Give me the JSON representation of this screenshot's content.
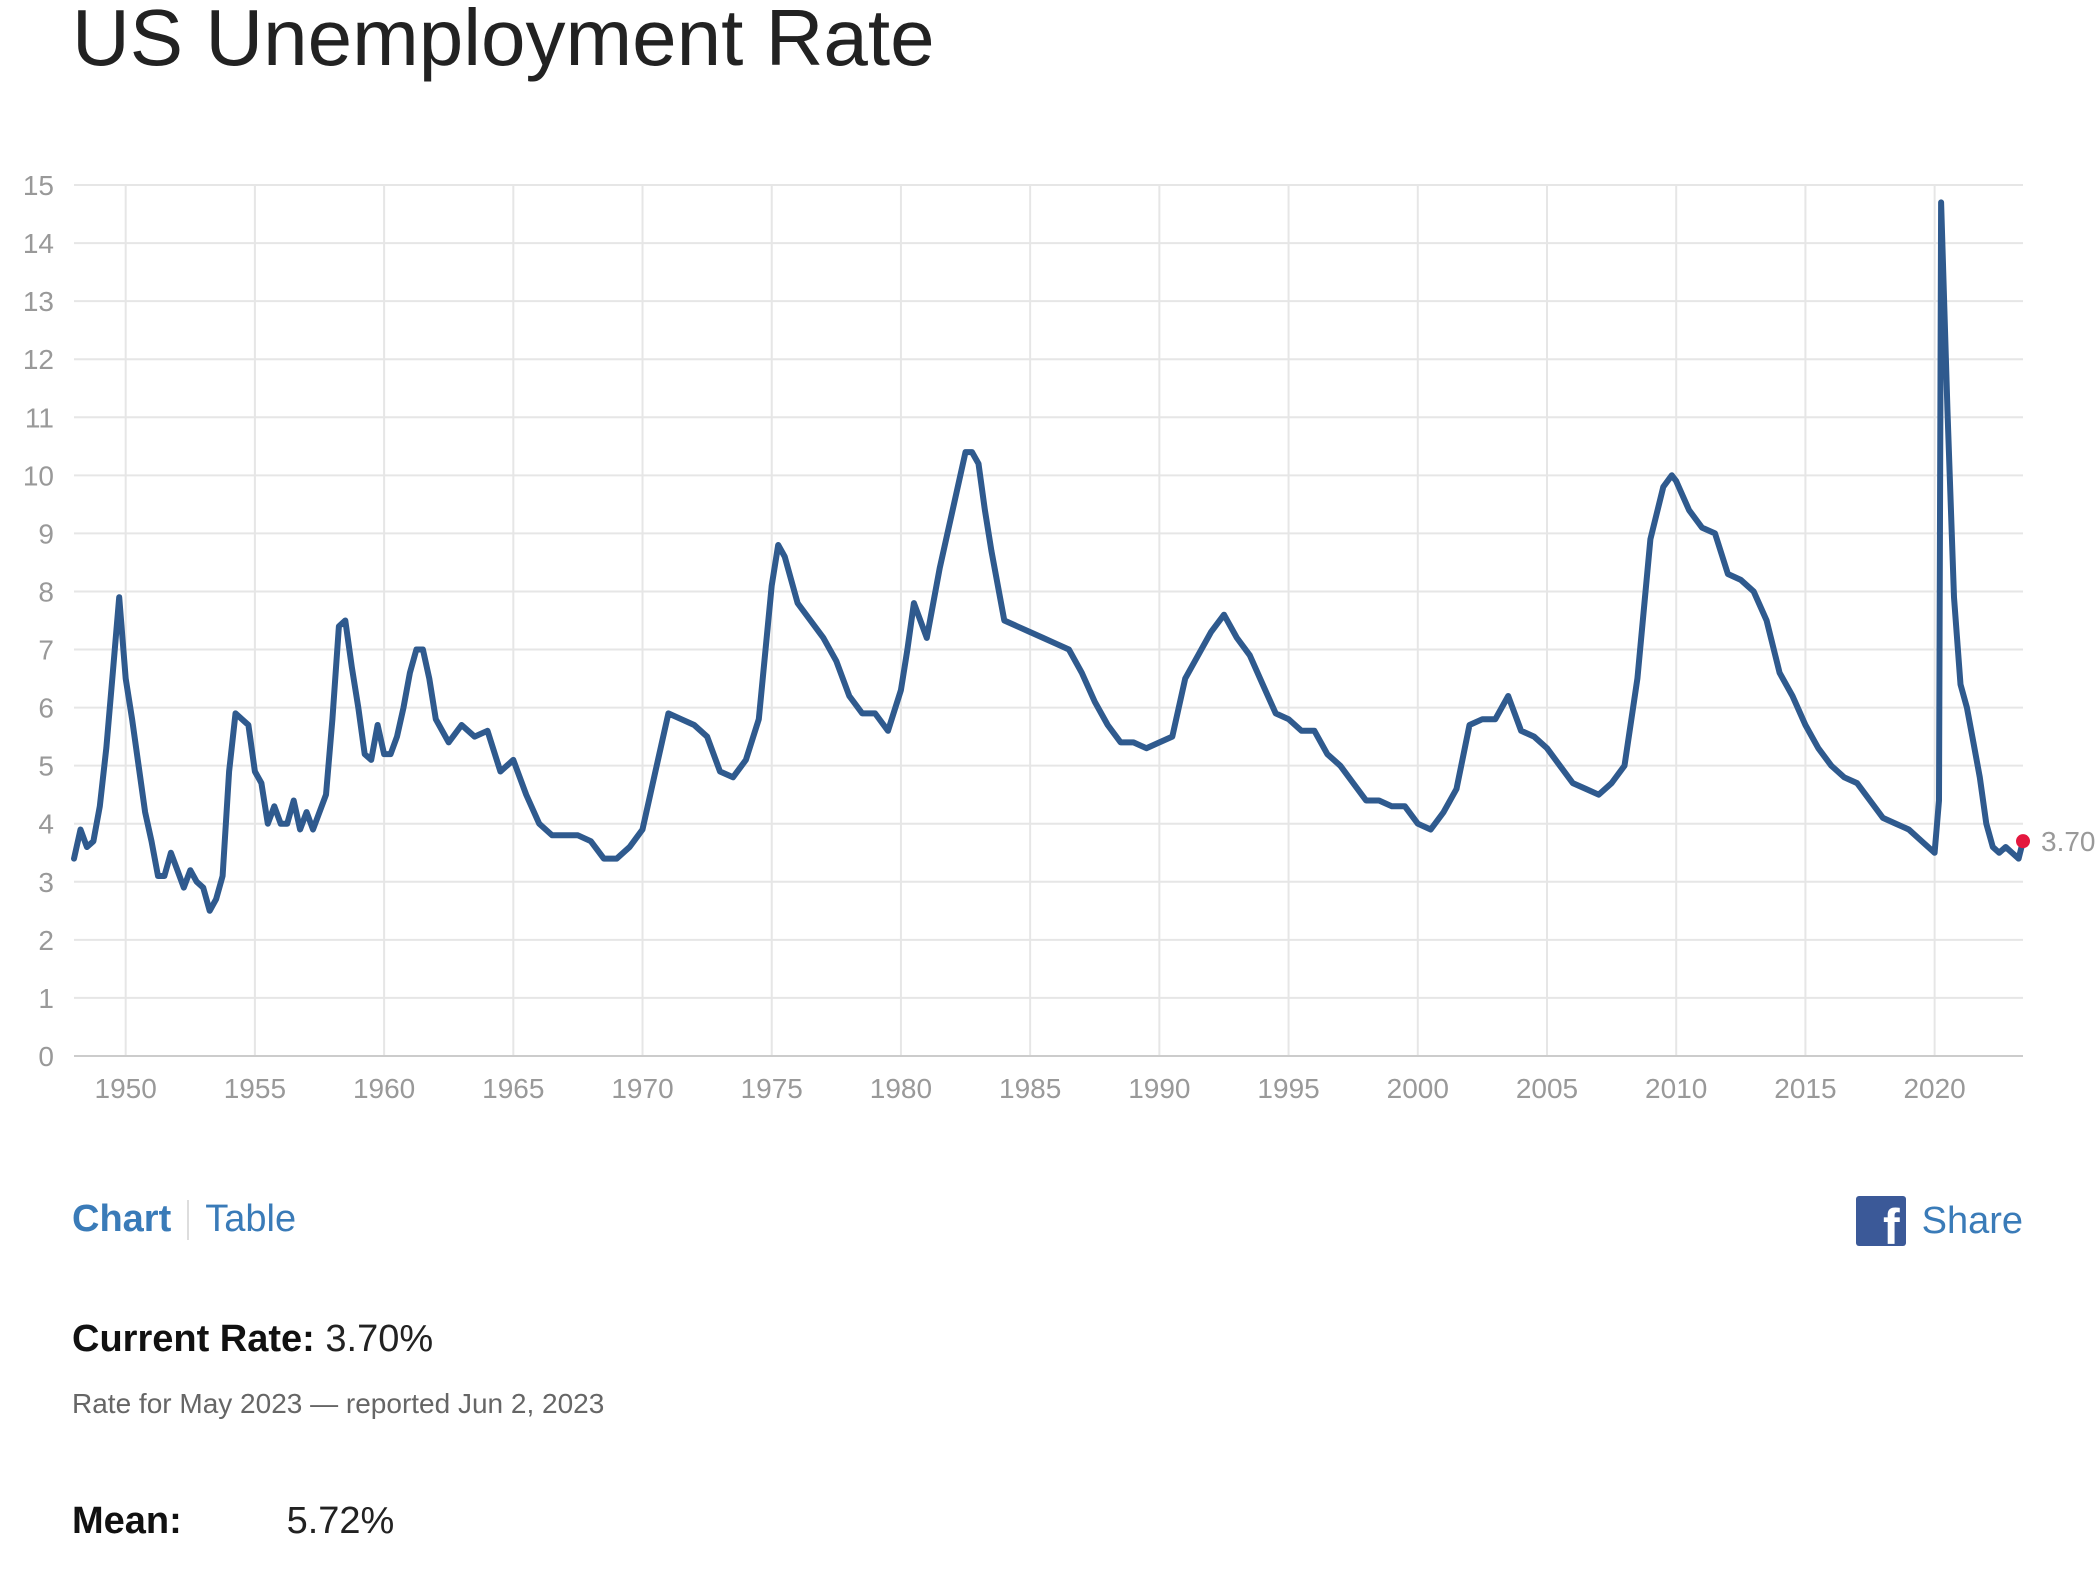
{
  "page": {
    "title": "US Unemployment Rate"
  },
  "tabs": {
    "chart_label": "Chart",
    "table_label": "Table",
    "share_label": "Share",
    "share_icon": "facebook-icon"
  },
  "stats": {
    "current_label": "Current Rate:",
    "current_value": "3.70%",
    "current_note": "Rate for May 2023 — reported Jun 2, 2023",
    "mean_label": "Mean:",
    "mean_value": "5.72%"
  },
  "colors": {
    "line": "#2f5a8e",
    "marker": "#e4173e",
    "grid": "#e6e6e6",
    "tick_text": "#999999",
    "link": "#3a7bb8"
  },
  "chart_data": {
    "type": "line",
    "title": "US Unemployment Rate",
    "xlabel": "",
    "ylabel": "",
    "ylim": [
      0,
      15
    ],
    "xlim": [
      1948,
      2023.42
    ],
    "grid": true,
    "y_ticks": [
      0,
      1,
      2,
      3,
      4,
      5,
      6,
      7,
      8,
      9,
      10,
      11,
      12,
      13,
      14,
      15
    ],
    "x_ticks": [
      1950,
      1955,
      1960,
      1965,
      1970,
      1975,
      1980,
      1985,
      1990,
      1995,
      2000,
      2005,
      2010,
      2015,
      2020
    ],
    "end_label": "3.70",
    "series": [
      {
        "x": [
          1948.0,
          1948.25,
          1948.5,
          1948.75,
          1949.0,
          1949.25,
          1949.5,
          1949.75,
          1950.0,
          1950.25,
          1950.5,
          1950.75,
          1951.0,
          1951.25,
          1951.5,
          1951.75,
          1952.0,
          1952.25,
          1952.5,
          1952.75,
          1953.0,
          1953.25,
          1953.5,
          1953.75,
          1954.0,
          1954.25,
          1954.5,
          1954.75,
          1955.0,
          1955.25,
          1955.5,
          1955.75,
          1956.0,
          1956.25,
          1956.5,
          1956.75,
          1957.0,
          1957.25,
          1957.5,
          1957.75,
          1958.0,
          1958.25,
          1958.5,
          1958.75,
          1959.0,
          1959.25,
          1959.5,
          1959.75,
          1960.0,
          1960.25,
          1960.5,
          1960.75,
          1961.0,
          1961.25,
          1961.5,
          1961.75,
          1962.0,
          1962.5,
          1963.0,
          1963.5,
          1964.0,
          1964.5,
          1965.0,
          1965.5,
          1966.0,
          1966.5,
          1967.0,
          1967.5,
          1968.0,
          1968.5,
          1969.0,
          1969.5,
          1970.0,
          1970.5,
          1971.0,
          1971.5,
          1972.0,
          1972.5,
          1973.0,
          1973.5,
          1974.0,
          1974.5,
          1975.0,
          1975.25,
          1975.5,
          1976.0,
          1976.5,
          1977.0,
          1977.5,
          1978.0,
          1978.5,
          1979.0,
          1979.5,
          1980.0,
          1980.25,
          1980.5,
          1981.0,
          1981.5,
          1982.0,
          1982.5,
          1982.75,
          1983.0,
          1983.25,
          1983.5,
          1984.0,
          1984.5,
          1985.0,
          1985.5,
          1986.0,
          1986.5,
          1987.0,
          1987.5,
          1988.0,
          1988.5,
          1989.0,
          1989.5,
          1990.0,
          1990.5,
          1991.0,
          1991.5,
          1992.0,
          1992.5,
          1993.0,
          1993.5,
          1994.0,
          1994.5,
          1995.0,
          1995.5,
          1996.0,
          1996.5,
          1997.0,
          1997.5,
          1998.0,
          1998.5,
          1999.0,
          1999.5,
          2000.0,
          2000.5,
          2001.0,
          2001.5,
          2002.0,
          2002.5,
          2003.0,
          2003.5,
          2004.0,
          2004.5,
          2005.0,
          2005.5,
          2006.0,
          2006.5,
          2007.0,
          2007.5,
          2008.0,
          2008.5,
          2009.0,
          2009.5,
          2009.83,
          2010.0,
          2010.5,
          2011.0,
          2011.5,
          2012.0,
          2012.5,
          2013.0,
          2013.5,
          2014.0,
          2014.5,
          2015.0,
          2015.5,
          2016.0,
          2016.5,
          2017.0,
          2017.5,
          2018.0,
          2018.5,
          2019.0,
          2019.5,
          2020.0,
          2020.17,
          2020.25,
          2020.5,
          2020.75,
          2021.0,
          2021.25,
          2021.5,
          2021.75,
          2022.0,
          2022.25,
          2022.5,
          2022.75,
          2023.0,
          2023.25,
          2023.42
        ],
        "y": [
          3.4,
          3.9,
          3.6,
          3.7,
          4.3,
          5.3,
          6.6,
          7.9,
          6.5,
          5.8,
          5.0,
          4.2,
          3.7,
          3.1,
          3.1,
          3.5,
          3.2,
          2.9,
          3.2,
          3.0,
          2.9,
          2.5,
          2.7,
          3.1,
          4.9,
          5.9,
          5.8,
          5.7,
          4.9,
          4.7,
          4.0,
          4.3,
          4.0,
          4.0,
          4.4,
          3.9,
          4.2,
          3.9,
          4.2,
          4.5,
          5.8,
          7.4,
          7.5,
          6.7,
          6.0,
          5.2,
          5.1,
          5.7,
          5.2,
          5.2,
          5.5,
          6.0,
          6.6,
          7.0,
          7.0,
          6.5,
          5.8,
          5.4,
          5.7,
          5.5,
          5.6,
          4.9,
          5.1,
          4.5,
          4.0,
          3.8,
          3.8,
          3.8,
          3.7,
          3.4,
          3.4,
          3.6,
          3.9,
          4.9,
          5.9,
          5.8,
          5.7,
          5.5,
          4.9,
          4.8,
          5.1,
          5.8,
          8.1,
          8.8,
          8.6,
          7.8,
          7.5,
          7.2,
          6.8,
          6.2,
          5.9,
          5.9,
          5.6,
          6.3,
          7.0,
          7.8,
          7.2,
          8.4,
          9.4,
          10.4,
          10.4,
          10.2,
          9.4,
          8.7,
          7.5,
          7.4,
          7.3,
          7.2,
          7.1,
          7.0,
          6.6,
          6.1,
          5.7,
          5.4,
          5.4,
          5.3,
          5.4,
          5.5,
          6.5,
          6.9,
          7.3,
          7.6,
          7.2,
          6.9,
          6.4,
          5.9,
          5.8,
          5.6,
          5.6,
          5.2,
          5.0,
          4.7,
          4.4,
          4.4,
          4.3,
          4.3,
          4.0,
          3.9,
          4.2,
          4.6,
          5.7,
          5.8,
          5.8,
          6.2,
          5.6,
          5.5,
          5.3,
          5.0,
          4.7,
          4.6,
          4.5,
          4.7,
          5.0,
          6.5,
          8.9,
          9.8,
          10.0,
          9.9,
          9.4,
          9.1,
          9.0,
          8.3,
          8.2,
          8.0,
          7.5,
          6.6,
          6.2,
          5.7,
          5.3,
          5.0,
          4.8,
          4.7,
          4.4,
          4.1,
          4.0,
          3.9,
          3.7,
          3.5,
          4.4,
          14.7,
          11.1,
          7.9,
          6.4,
          6.0,
          5.4,
          4.8,
          4.0,
          3.6,
          3.5,
          3.6,
          3.5,
          3.4,
          3.7
        ]
      }
    ]
  }
}
